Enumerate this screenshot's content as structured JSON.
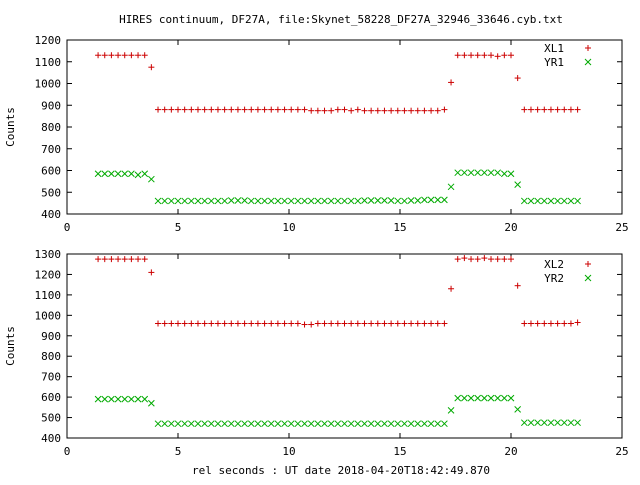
{
  "title": "HIRES continuum, DF27A, file:Skynet_58228_DF27A_32946_33646.cyb.txt",
  "xlabel": "rel seconds : UT date 2018-04-20T18:42:49.870",
  "colors": {
    "red_series": "#cc0000",
    "green_series": "#00aa00",
    "axis": "#000000"
  },
  "chart_data": [
    {
      "type": "scatter",
      "title": "HIRES continuum, DF27A, file:Skynet_58228_DF27A_32946_33646.cyb.txt",
      "xlabel": "",
      "ylabel": "Counts",
      "xlim": [
        0,
        25
      ],
      "ylim": [
        400,
        1200
      ],
      "xticks": [
        "0",
        "5",
        "10",
        "15",
        "20",
        "25"
      ],
      "yticks": [
        "400",
        "500",
        "600",
        "700",
        "800",
        "900",
        "1000",
        "1100",
        "1200"
      ],
      "grid": false,
      "legend": "top-right",
      "x": [
        1.4,
        1.7,
        2.0,
        2.3,
        2.6,
        2.9,
        3.2,
        3.5,
        3.8,
        4.1,
        4.4,
        4.7,
        5.0,
        5.3,
        5.6,
        5.9,
        6.2,
        6.5,
        6.8,
        7.1,
        7.4,
        7.7,
        8.0,
        8.3,
        8.6,
        8.9,
        9.2,
        9.5,
        9.8,
        10.1,
        10.4,
        10.7,
        11.0,
        11.3,
        11.6,
        11.9,
        12.2,
        12.5,
        12.8,
        13.1,
        13.4,
        13.7,
        14.0,
        14.3,
        14.6,
        14.9,
        15.2,
        15.5,
        15.8,
        16.1,
        16.4,
        16.7,
        17.0,
        17.3,
        17.6,
        17.9,
        18.2,
        18.5,
        18.8,
        19.1,
        19.4,
        19.7,
        20.0,
        20.3,
        20.6,
        20.9,
        21.2,
        21.5,
        21.8,
        22.1,
        22.4,
        22.7,
        23.0
      ],
      "series": [
        {
          "name": "XL1",
          "marker": "plus",
          "color": "#cc0000",
          "values": [
            1130,
            1130,
            1130,
            1130,
            1130,
            1130,
            1130,
            1130,
            1075,
            880,
            880,
            880,
            880,
            880,
            880,
            880,
            880,
            880,
            880,
            880,
            880,
            880,
            880,
            880,
            880,
            880,
            880,
            880,
            880,
            880,
            880,
            880,
            875,
            875,
            875,
            875,
            880,
            880,
            875,
            880,
            875,
            875,
            875,
            875,
            875,
            875,
            875,
            875,
            875,
            875,
            875,
            875,
            880,
            1005,
            1130,
            1130,
            1130,
            1130,
            1130,
            1130,
            1125,
            1130,
            1130,
            1025,
            880,
            880,
            880,
            880,
            880,
            880,
            880,
            880,
            880
          ]
        },
        {
          "name": "YR1",
          "marker": "cross",
          "color": "#00aa00",
          "values": [
            585,
            585,
            585,
            585,
            585,
            585,
            580,
            585,
            560,
            460,
            460,
            460,
            460,
            460,
            460,
            460,
            460,
            460,
            460,
            460,
            462,
            462,
            462,
            460,
            460,
            460,
            460,
            460,
            460,
            460,
            460,
            460,
            460,
            460,
            460,
            460,
            460,
            460,
            460,
            460,
            462,
            462,
            462,
            462,
            462,
            460,
            460,
            462,
            462,
            465,
            465,
            465,
            465,
            525,
            590,
            590,
            590,
            590,
            590,
            590,
            590,
            585,
            585,
            535,
            460,
            460,
            460,
            460,
            460,
            460,
            460,
            460,
            460
          ]
        }
      ]
    },
    {
      "type": "scatter",
      "xlabel": "rel seconds : UT date 2018-04-20T18:42:49.870",
      "ylabel": "Counts",
      "xlim": [
        0,
        25
      ],
      "ylim": [
        400,
        1300
      ],
      "xticks": [
        "0",
        "5",
        "10",
        "15",
        "20",
        "25"
      ],
      "yticks": [
        "400",
        "500",
        "600",
        "700",
        "800",
        "900",
        "1000",
        "1100",
        "1200",
        "1300"
      ],
      "grid": false,
      "legend": "top-right",
      "x": [
        1.4,
        1.7,
        2.0,
        2.3,
        2.6,
        2.9,
        3.2,
        3.5,
        3.8,
        4.1,
        4.4,
        4.7,
        5.0,
        5.3,
        5.6,
        5.9,
        6.2,
        6.5,
        6.8,
        7.1,
        7.4,
        7.7,
        8.0,
        8.3,
        8.6,
        8.9,
        9.2,
        9.5,
        9.8,
        10.1,
        10.4,
        10.7,
        11.0,
        11.3,
        11.6,
        11.9,
        12.2,
        12.5,
        12.8,
        13.1,
        13.4,
        13.7,
        14.0,
        14.3,
        14.6,
        14.9,
        15.2,
        15.5,
        15.8,
        16.1,
        16.4,
        16.7,
        17.0,
        17.3,
        17.6,
        17.9,
        18.2,
        18.5,
        18.8,
        19.1,
        19.4,
        19.7,
        20.0,
        20.3,
        20.6,
        20.9,
        21.2,
        21.5,
        21.8,
        22.1,
        22.4,
        22.7,
        23.0
      ],
      "series": [
        {
          "name": "XL2",
          "marker": "plus",
          "color": "#cc0000",
          "values": [
            1275,
            1275,
            1275,
            1275,
            1275,
            1275,
            1275,
            1275,
            1210,
            960,
            960,
            960,
            960,
            960,
            960,
            960,
            960,
            960,
            960,
            960,
            960,
            960,
            960,
            960,
            960,
            960,
            960,
            960,
            960,
            960,
            960,
            955,
            955,
            960,
            960,
            960,
            960,
            960,
            960,
            960,
            960,
            960,
            960,
            960,
            960,
            960,
            960,
            960,
            960,
            960,
            960,
            960,
            960,
            1130,
            1275,
            1280,
            1275,
            1275,
            1280,
            1275,
            1275,
            1275,
            1275,
            1145,
            960,
            960,
            960,
            960,
            960,
            960,
            960,
            960,
            965
          ]
        },
        {
          "name": "YR2",
          "marker": "cross",
          "color": "#00aa00",
          "values": [
            590,
            590,
            590,
            590,
            590,
            590,
            590,
            590,
            570,
            470,
            470,
            470,
            470,
            470,
            470,
            470,
            470,
            470,
            470,
            470,
            470,
            470,
            470,
            470,
            470,
            470,
            470,
            470,
            470,
            470,
            470,
            470,
            470,
            470,
            470,
            470,
            470,
            470,
            470,
            470,
            470,
            470,
            470,
            470,
            470,
            470,
            470,
            470,
            470,
            470,
            470,
            470,
            470,
            535,
            595,
            595,
            595,
            595,
            595,
            595,
            595,
            595,
            595,
            540,
            475,
            475,
            475,
            475,
            475,
            475,
            475,
            475,
            475
          ]
        }
      ]
    }
  ]
}
